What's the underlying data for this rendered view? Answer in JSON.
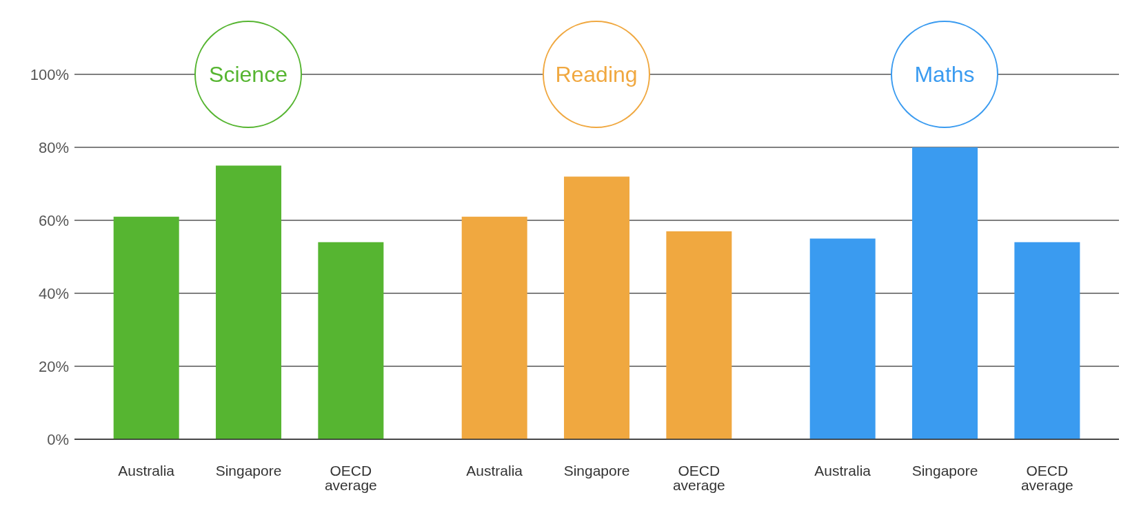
{
  "chart_data": [
    {
      "type": "bar",
      "title": "Science",
      "categories": [
        "Australia",
        "Singapore",
        "OECD average"
      ],
      "values": [
        61,
        75,
        54
      ],
      "color": "#56b531",
      "ylim": [
        0,
        100
      ],
      "yticks": [
        {
          "value": 0,
          "label": "0%"
        },
        {
          "value": 20,
          "label": "20%"
        },
        {
          "value": 40,
          "label": "40%"
        },
        {
          "value": 60,
          "label": "60%"
        },
        {
          "value": 80,
          "label": "80%"
        },
        {
          "value": 100,
          "label": "100%"
        }
      ],
      "grid": "y"
    },
    {
      "type": "bar",
      "title": "Reading",
      "categories": [
        "Australia",
        "Singapore",
        "OECD average"
      ],
      "values": [
        61,
        72,
        57
      ],
      "color": "#f0a840",
      "ylim": [
        0,
        100
      ],
      "yticks": [
        {
          "value": 0,
          "label": null
        },
        {
          "value": 20,
          "label": null
        },
        {
          "value": 40,
          "label": null
        },
        {
          "value": 60,
          "label": null
        },
        {
          "value": 80,
          "label": null
        },
        {
          "value": 100,
          "label": null
        }
      ],
      "grid": "y",
      "tick_labels": "x"
    },
    {
      "type": "bar",
      "title": "Maths",
      "categories": [
        "Australia",
        "Singapore",
        "OECD average"
      ],
      "values": [
        55,
        80,
        54
      ],
      "color": "#3a9bf0",
      "ylim": [
        0,
        100
      ],
      "yticks": [
        {
          "value": 0,
          "label": null
        },
        {
          "value": 20,
          "label": null
        },
        {
          "value": 40,
          "label": null
        },
        {
          "value": 60,
          "label": null
        },
        {
          "value": 80,
          "label": null
        },
        {
          "value": 100,
          "label": null
        }
      ],
      "grid": "y",
      "tick_labels": "x"
    }
  ]
}
